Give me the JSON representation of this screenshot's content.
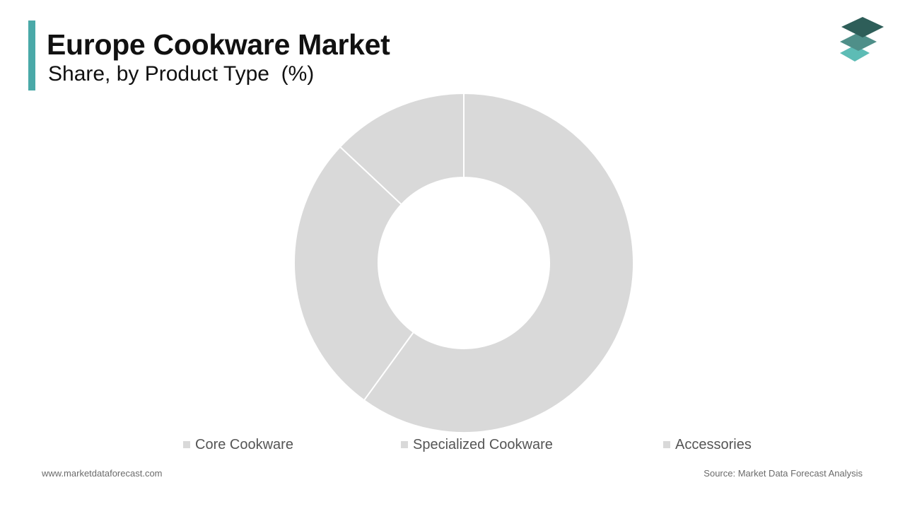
{
  "header": {
    "title": "Europe Cookware Market",
    "subtitle": "Share, by Product Type  (%)"
  },
  "logo": {
    "icon": "stacked-layers-icon"
  },
  "colors": {
    "accent": "#4aa9a8",
    "slice_fill": "#d9d9d9",
    "slice_stroke": "#ffffff",
    "logo_top": "#2e5e59",
    "logo_middle": "#4f8f89",
    "logo_bottom": "#5dbcb5"
  },
  "chart_data": {
    "type": "pie",
    "style": "donut",
    "categories": [
      "Core Cookware",
      "Specialized Cookware",
      "Accessories"
    ],
    "values": [
      60,
      27,
      13
    ],
    "unit": "%",
    "legend_placement": "bottom"
  },
  "footer": {
    "website": "www.marketdataforecast.com",
    "source": "Source: Market Data Forecast Analysis"
  }
}
